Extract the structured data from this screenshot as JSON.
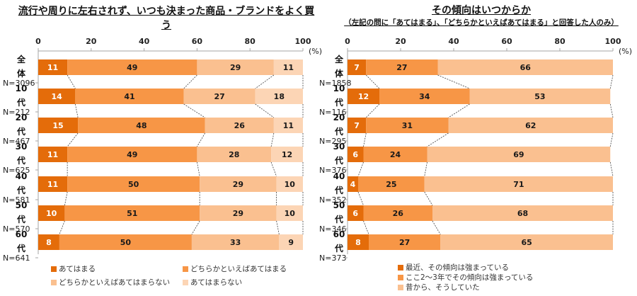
{
  "colors": {
    "seg1": "#E46C0A",
    "seg2": "#F79646",
    "seg3": "#FAC090",
    "seg4": "#FCD5B5",
    "axis": "#A6A6A6",
    "connector": "#404040"
  },
  "chart_data": [
    {
      "type": "bar",
      "orientation": "horizontal-stacked-100",
      "title": "流行や周りに左右されず、いつも決まった商品・ブランドをよく買う",
      "xlabel": "",
      "unit": "(%)",
      "xlim": [
        0,
        100
      ],
      "xticks": [
        "0",
        "20",
        "40",
        "60",
        "80",
        "100"
      ],
      "categories": [
        {
          "label": "全体",
          "n": "N=3096"
        },
        {
          "label": "10代",
          "n": "N=212"
        },
        {
          "label": "20代",
          "n": "N=467"
        },
        {
          "label": "30代",
          "n": "N=625"
        },
        {
          "label": "40代",
          "n": "N=581"
        },
        {
          "label": "50代",
          "n": "N=570"
        },
        {
          "label": "60代",
          "n": "N=641"
        }
      ],
      "series": [
        {
          "name": "あてはまる",
          "values": [
            11,
            14,
            15,
            11,
            11,
            10,
            8
          ]
        },
        {
          "name": "どちらかといえばあてはまる",
          "values": [
            49,
            41,
            48,
            49,
            50,
            51,
            50
          ]
        },
        {
          "name": "どちらかといえばあてはまらない",
          "values": [
            29,
            27,
            26,
            28,
            29,
            29,
            33
          ]
        },
        {
          "name": "あてはまらない",
          "values": [
            11,
            18,
            11,
            12,
            10,
            10,
            9
          ]
        }
      ],
      "legend": "bottom"
    },
    {
      "type": "bar",
      "orientation": "horizontal-stacked-100",
      "title": "その傾向はいつからか",
      "subtitle": "（左記の問に「あてはまる」、「どちらかといえばあてはまる」と回答した人のみ）",
      "xlabel": "",
      "unit": "(%)",
      "xlim": [
        0,
        100
      ],
      "xticks": [
        "0",
        "20",
        "40",
        "60",
        "80",
        "100"
      ],
      "categories": [
        {
          "label": "全体",
          "n": "N=1858"
        },
        {
          "label": "10代",
          "n": "N=116"
        },
        {
          "label": "20代",
          "n": "N=295"
        },
        {
          "label": "30代",
          "n": "N=376"
        },
        {
          "label": "40代",
          "n": "N=352"
        },
        {
          "label": "50代",
          "n": "N=346"
        },
        {
          "label": "60代",
          "n": "N=373"
        }
      ],
      "series": [
        {
          "name": "最近、その傾向は強まっている",
          "values": [
            7,
            12,
            7,
            6,
            4,
            6,
            8
          ]
        },
        {
          "name": "ここ2～3年でその傾向は強まっている",
          "values": [
            27,
            34,
            31,
            24,
            25,
            26,
            27
          ]
        },
        {
          "name": "昔から、そうしていた",
          "values": [
            66,
            53,
            62,
            69,
            71,
            68,
            65
          ]
        }
      ],
      "legend": "bottom"
    }
  ]
}
